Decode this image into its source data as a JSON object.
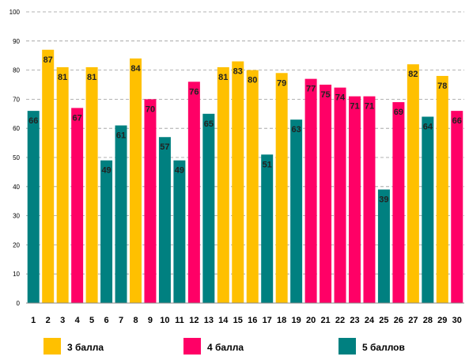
{
  "chart_data": {
    "type": "bar",
    "categories": [
      "1",
      "2",
      "3",
      "4",
      "5",
      "6",
      "7",
      "8",
      "9",
      "10",
      "11",
      "12",
      "13",
      "14",
      "15",
      "16",
      "17",
      "18",
      "19",
      "20",
      "21",
      "22",
      "23",
      "24",
      "25",
      "26",
      "27",
      "28",
      "29",
      "30"
    ],
    "values": [
      66,
      87,
      81,
      67,
      81,
      49,
      61,
      84,
      70,
      57,
      49,
      76,
      65,
      81,
      83,
      80,
      51,
      79,
      63,
      77,
      75,
      74,
      71,
      71,
      39,
      69,
      82,
      64,
      78,
      66
    ],
    "groups": [
      "5",
      "3",
      "3",
      "4",
      "3",
      "5",
      "5",
      "3",
      "4",
      "5",
      "5",
      "4",
      "5",
      "3",
      "3",
      "3",
      "5",
      "3",
      "5",
      "4",
      "4",
      "4",
      "4",
      "4",
      "5",
      "4",
      "3",
      "5",
      "3",
      "4"
    ],
    "series": [
      {
        "key": "3",
        "name": "3 балла",
        "color": "#FFC000"
      },
      {
        "key": "4",
        "name": "4 балла",
        "color": "#FF0066"
      },
      {
        "key": "5",
        "name": "5 баллов",
        "color": "#008080"
      }
    ],
    "ylim": [
      0,
      100
    ],
    "yticks": [
      "0",
      "10",
      "20",
      "30",
      "40",
      "50",
      "60",
      "70",
      "80",
      "90",
      "100"
    ],
    "grid": true,
    "legend_position": "bottom",
    "title": "",
    "xlabel": "",
    "ylabel": ""
  }
}
